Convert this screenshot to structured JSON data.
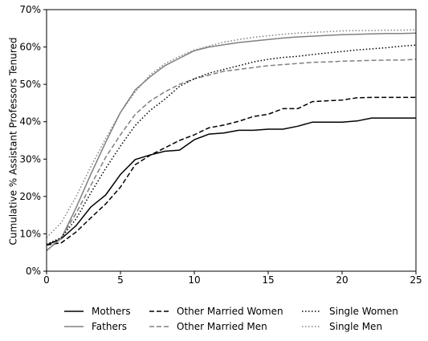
{
  "chart_data": {
    "type": "line",
    "title": "",
    "xlabel": "",
    "ylabel": "Cumulative % Assistant Professors Tenured",
    "xlim": [
      0,
      25
    ],
    "ylim": [
      0,
      70
    ],
    "x_ticks": [
      0,
      5,
      10,
      15,
      20,
      25
    ],
    "x_tick_labels": [
      "0",
      "5",
      "10",
      "15",
      "20",
      "25"
    ],
    "y_ticks": [
      0,
      10,
      20,
      30,
      40,
      50,
      60,
      70
    ],
    "y_tick_labels": [
      "0%",
      "10%",
      "20%",
      "30%",
      "40%",
      "50%",
      "60%",
      "70%"
    ],
    "grid": false,
    "legend_position": "bottom",
    "x": [
      0,
      1,
      2,
      3,
      4,
      5,
      6,
      7,
      8,
      9,
      10,
      11,
      12,
      13,
      14,
      15,
      16,
      17,
      18,
      19,
      20,
      21,
      22,
      23,
      24,
      25
    ],
    "series": [
      {
        "name": "Mothers",
        "color": "#000000",
        "style": "solid",
        "values": [
          7.0,
          8.7,
          12.2,
          17.2,
          20.4,
          25.9,
          29.9,
          31.1,
          32.1,
          32.4,
          35.2,
          36.7,
          37.0,
          37.7,
          37.7,
          38.0,
          38.0,
          38.8,
          39.9,
          39.9,
          39.9,
          40.2,
          41.0,
          41.0,
          41.0,
          41.0
        ]
      },
      {
        "name": "Fathers",
        "color": "#808080",
        "style": "solid",
        "values": [
          5.5,
          8.8,
          17.0,
          26.0,
          34.5,
          42.5,
          48.5,
          52.0,
          55.0,
          57.0,
          59.0,
          60.0,
          60.6,
          61.2,
          61.6,
          62.0,
          62.4,
          62.7,
          62.9,
          63.1,
          63.3,
          63.4,
          63.5,
          63.6,
          63.6,
          63.7
        ]
      },
      {
        "name": "Other Married Women",
        "color": "#000000",
        "style": "dashed",
        "values": [
          7.0,
          7.6,
          10.5,
          14.3,
          18.0,
          22.5,
          28.5,
          31.0,
          33.0,
          35.0,
          36.5,
          38.4,
          39.1,
          40.1,
          41.4,
          42.0,
          43.5,
          43.5,
          45.4,
          45.6,
          45.8,
          46.4,
          46.5,
          46.5,
          46.5,
          46.5
        ]
      },
      {
        "name": "Other Married Men",
        "color": "#808080",
        "style": "dashed",
        "values": [
          5.5,
          9.0,
          15.5,
          23.0,
          30.5,
          36.5,
          42.0,
          45.5,
          48.0,
          50.0,
          51.5,
          52.5,
          53.5,
          54.0,
          54.5,
          55.0,
          55.3,
          55.6,
          55.9,
          56.0,
          56.2,
          56.3,
          56.4,
          56.5,
          56.5,
          56.7
        ]
      },
      {
        "name": "Single Women",
        "color": "#000000",
        "style": "dotted",
        "values": [
          7.2,
          9.0,
          14.0,
          21.0,
          27.5,
          33.5,
          39.0,
          43.0,
          46.0,
          49.5,
          51.5,
          53.0,
          54.0,
          55.0,
          56.0,
          56.7,
          57.2,
          57.5,
          58.0,
          58.4,
          58.8,
          59.2,
          59.5,
          59.8,
          60.2,
          60.5
        ]
      },
      {
        "name": "Single Men",
        "color": "#808080",
        "style": "dotted",
        "values": [
          9.0,
          13.0,
          20.0,
          28.0,
          35.5,
          42.5,
          48.0,
          52.5,
          55.5,
          57.5,
          59.2,
          60.3,
          61.3,
          62.0,
          62.6,
          63.0,
          63.4,
          63.7,
          63.9,
          64.1,
          64.3,
          64.4,
          64.4,
          64.5,
          64.5,
          64.6
        ]
      }
    ]
  }
}
